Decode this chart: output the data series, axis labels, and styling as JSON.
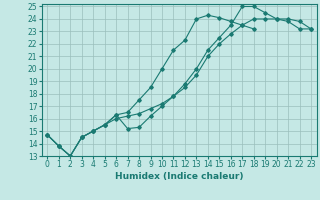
{
  "xlabel": "Humidex (Indice chaleur)",
  "bg_color": "#c5e8e5",
  "grid_color": "#9bbfbc",
  "line_color": "#1a7a72",
  "xlim": [
    -0.5,
    23.5
  ],
  "ylim": [
    13,
    25.2
  ],
  "xticks": [
    0,
    1,
    2,
    3,
    4,
    5,
    6,
    7,
    8,
    9,
    10,
    11,
    12,
    13,
    14,
    15,
    16,
    17,
    18,
    19,
    20,
    21,
    22,
    23
  ],
  "yticks": [
    13,
    14,
    15,
    16,
    17,
    18,
    19,
    20,
    21,
    22,
    23,
    24,
    25
  ],
  "series": [
    [
      14.7,
      13.8,
      13.0,
      14.5,
      15.0,
      15.5,
      16.3,
      16.5,
      17.5,
      18.5,
      20.0,
      21.5,
      22.3,
      24.0,
      24.3,
      24.1,
      23.8,
      23.5,
      23.2
    ],
    [
      14.7,
      13.8,
      13.0,
      14.5,
      15.0,
      15.5,
      16.0,
      16.2,
      16.4,
      16.8,
      17.2,
      17.8,
      18.5,
      19.5,
      21.0,
      22.0,
      22.8,
      23.5,
      24.0,
      24.0,
      24.0,
      23.8,
      23.2,
      23.2
    ],
    [
      14.7,
      13.8,
      13.0,
      14.5,
      15.0,
      15.5,
      16.3,
      15.2,
      15.3,
      16.2,
      17.0,
      17.8,
      18.8,
      20.0,
      21.5,
      22.5,
      23.5,
      25.0,
      25.0,
      24.5,
      24.0,
      24.0,
      23.8,
      23.2
    ]
  ],
  "series_x": [
    [
      0,
      1,
      2,
      3,
      4,
      5,
      6,
      7,
      8,
      9,
      10,
      11,
      12,
      13,
      14,
      15,
      16,
      17,
      18
    ],
    [
      0,
      1,
      2,
      3,
      4,
      5,
      6,
      7,
      8,
      9,
      10,
      11,
      12,
      13,
      14,
      15,
      16,
      17,
      18,
      19,
      20,
      21,
      22,
      23
    ],
    [
      0,
      1,
      2,
      3,
      4,
      5,
      6,
      7,
      8,
      9,
      10,
      11,
      12,
      13,
      14,
      15,
      16,
      17,
      18,
      19,
      20,
      21,
      22,
      23
    ]
  ],
  "tick_fontsize": 5.5,
  "xlabel_fontsize": 6.5
}
